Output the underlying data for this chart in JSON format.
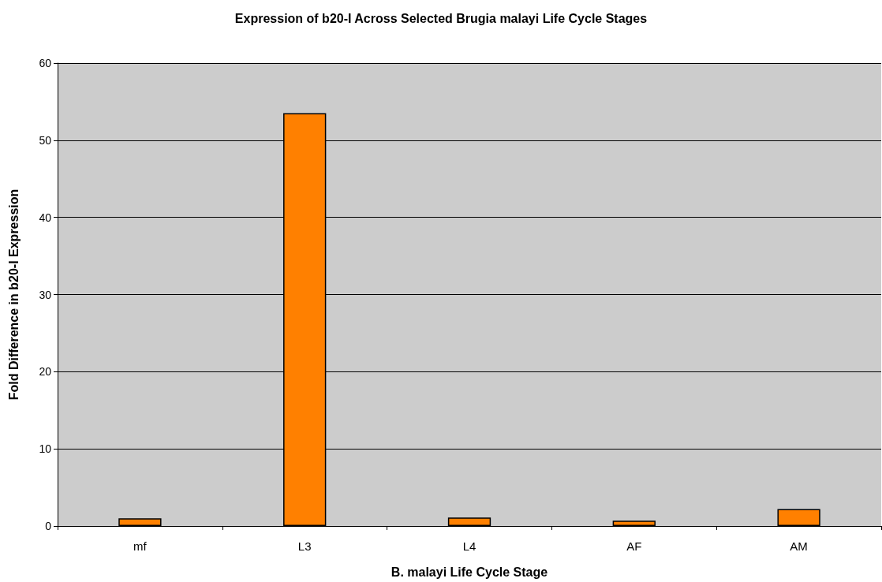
{
  "chart_data": {
    "type": "bar",
    "title": "Expression of b20-I Across Selected Brugia malayi Life Cycle Stages",
    "xlabel": "B. malayi Life Cycle Stage",
    "ylabel": "Fold Difference in b20-I Expression",
    "categories": [
      "mf",
      "L3",
      "L4",
      "AF",
      "AM"
    ],
    "values": [
      1.0,
      53.5,
      1.1,
      0.7,
      2.2
    ],
    "color": "#ff8000",
    "ylim": [
      0,
      60
    ],
    "yticks": [
      0,
      10,
      20,
      30,
      40,
      50,
      60
    ],
    "grid": "y"
  }
}
